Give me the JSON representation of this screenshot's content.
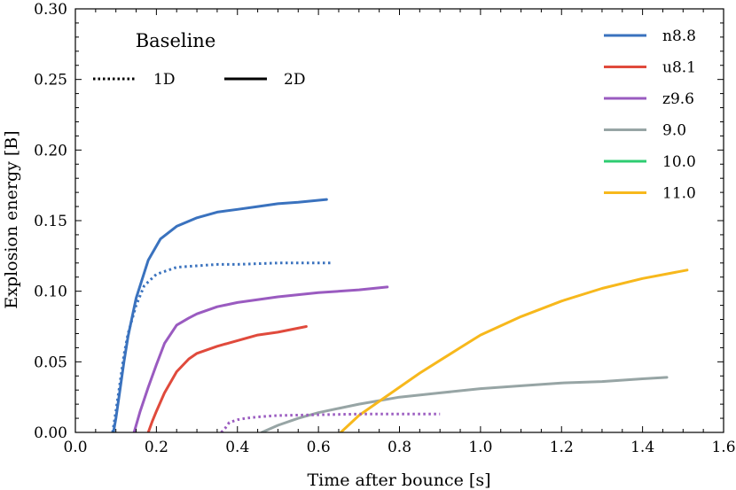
{
  "chart_data": {
    "type": "line",
    "title": "",
    "xlabel": "Time after bounce [s]",
    "ylabel": "Explosion energy [B]",
    "xlim": [
      0.0,
      1.6
    ],
    "ylim": [
      0.0,
      0.3
    ],
    "xticks": [
      0.0,
      0.2,
      0.4,
      0.6,
      0.8,
      1.0,
      1.2,
      1.4,
      1.6
    ],
    "xtick_labels": [
      "0.0",
      "0.2",
      "0.4",
      "0.6",
      "0.8",
      "1.0",
      "1.2",
      "1.4",
      "1.6"
    ],
    "yticks": [
      0.0,
      0.05,
      0.1,
      0.15,
      0.2,
      0.25,
      0.3
    ],
    "ytick_labels": [
      "0.00",
      "0.05",
      "0.10",
      "0.15",
      "0.20",
      "0.25",
      "0.30"
    ],
    "grid": false,
    "legend_position": "top-right",
    "annotation": {
      "title": "Baseline",
      "style_1d": "1D",
      "style_2d": "2D"
    },
    "series": [
      {
        "name": "n8.8",
        "color": "#3a72be",
        "legend": true,
        "x": [
          0.094,
          0.1,
          0.11,
          0.12,
          0.13,
          0.15,
          0.18,
          0.21,
          0.25,
          0.3,
          0.35,
          0.4,
          0.45,
          0.5,
          0.55,
          0.62
        ],
        "y": [
          0.0,
          0.01,
          0.03,
          0.05,
          0.068,
          0.095,
          0.122,
          0.137,
          0.146,
          0.152,
          0.156,
          0.158,
          0.16,
          0.162,
          0.163,
          0.165
        ]
      },
      {
        "name": "u8.1",
        "color": "#e04a3c",
        "legend": true,
        "x": [
          0.18,
          0.19,
          0.2,
          0.22,
          0.25,
          0.28,
          0.3,
          0.35,
          0.4,
          0.45,
          0.5,
          0.57
        ],
        "y": [
          0.0,
          0.008,
          0.015,
          0.028,
          0.043,
          0.052,
          0.056,
          0.061,
          0.065,
          0.069,
          0.071,
          0.075
        ]
      },
      {
        "name": "z9.6",
        "color": "#9a5bc0",
        "legend": true,
        "x": [
          0.145,
          0.16,
          0.18,
          0.2,
          0.22,
          0.25,
          0.28,
          0.3,
          0.35,
          0.4,
          0.5,
          0.6,
          0.7,
          0.77
        ],
        "y": [
          0.0,
          0.015,
          0.032,
          0.048,
          0.063,
          0.076,
          0.081,
          0.084,
          0.089,
          0.092,
          0.096,
          0.099,
          0.101,
          0.103
        ]
      },
      {
        "name": "9.0",
        "color": "#97a5a5",
        "legend": true,
        "x": [
          0.46,
          0.5,
          0.55,
          0.6,
          0.65,
          0.7,
          0.8,
          0.9,
          1.0,
          1.1,
          1.2,
          1.3,
          1.4,
          1.46
        ],
        "y": [
          0.0,
          0.005,
          0.01,
          0.014,
          0.017,
          0.02,
          0.025,
          0.028,
          0.031,
          0.033,
          0.035,
          0.036,
          0.038,
          0.039
        ]
      },
      {
        "name": "10.0",
        "color": "#2ecc71",
        "legend": true,
        "x": [],
        "y": []
      },
      {
        "name": "11.0",
        "color": "#f7b81c",
        "legend": true,
        "x": [
          0.655,
          0.7,
          0.75,
          0.8,
          0.85,
          0.9,
          0.95,
          1.0,
          1.1,
          1.2,
          1.3,
          1.4,
          1.51
        ],
        "y": [
          0.0,
          0.012,
          0.022,
          0.032,
          0.042,
          0.051,
          0.06,
          0.069,
          0.082,
          0.093,
          0.102,
          0.109,
          0.115
        ]
      },
      {
        "name": "n8.8 1D",
        "color": "#3a72be",
        "legend": false,
        "style": "dotted",
        "x": [
          0.092,
          0.1,
          0.11,
          0.12,
          0.13,
          0.15,
          0.17,
          0.2,
          0.25,
          0.3,
          0.35,
          0.4,
          0.5,
          0.63
        ],
        "y": [
          0.0,
          0.015,
          0.035,
          0.055,
          0.07,
          0.09,
          0.104,
          0.112,
          0.117,
          0.118,
          0.119,
          0.119,
          0.12,
          0.12
        ]
      },
      {
        "name": "z9.6 1D",
        "color": "#9a5bc0",
        "legend": false,
        "style": "dotted",
        "x": [
          0.36,
          0.37,
          0.38,
          0.4,
          0.42,
          0.45,
          0.5,
          0.6,
          0.7,
          0.8,
          0.9
        ],
        "y": [
          0.0,
          0.003,
          0.007,
          0.009,
          0.01,
          0.011,
          0.012,
          0.0125,
          0.013,
          0.013,
          0.013
        ]
      }
    ]
  }
}
